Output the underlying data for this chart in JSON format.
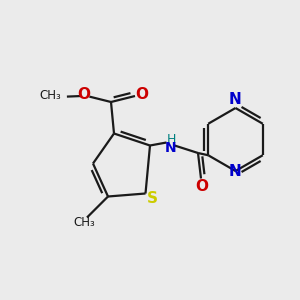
{
  "background_color": "#ebebeb",
  "bond_color": "#1a1a1a",
  "S_color": "#cccc00",
  "N_color": "#0000cc",
  "O_color": "#cc0000",
  "NH_color": "#008080",
  "figsize": [
    3.0,
    3.0
  ],
  "dpi": 100,
  "xlim": [
    0,
    10
  ],
  "ylim": [
    0,
    10
  ]
}
